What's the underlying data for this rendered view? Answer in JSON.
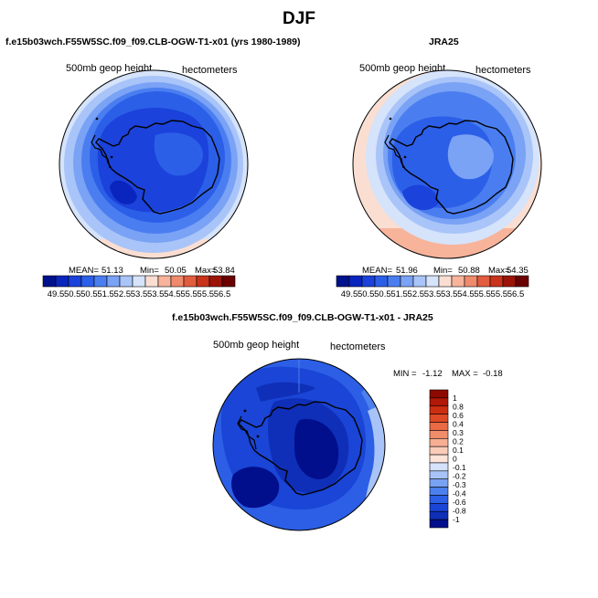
{
  "figure_title": "DJF",
  "colors": {
    "seq": [
      "#00118d",
      "#0a25bd",
      "#1b42da",
      "#2c5fe8",
      "#4a7ef0",
      "#7aa2f5",
      "#a9c4f8",
      "#d5e3fb",
      "#fbded2",
      "#f7b49b",
      "#f08a6c",
      "#e25c3f",
      "#c9321b",
      "#9c1408",
      "#6b0000"
    ],
    "diff_pos": [
      "#fde3d8",
      "#fbcdb9",
      "#f7ae92",
      "#f28d6c",
      "#ea6a45",
      "#df4a26",
      "#cd2e12",
      "#b01808",
      "#8e0a00"
    ],
    "diff_neg": [
      "#d4e2fb",
      "#a8c3f7",
      "#7aa2f2",
      "#4b80ee",
      "#2c5fe6",
      "#1a45d6",
      "#0f2fb8",
      "#010f8c"
    ]
  },
  "chart_data": [
    {
      "type": "polar_contour_map",
      "title": "f.e15b03wch.F55W5SC.f09_f09.CLB-OGW-T1-x01 (yrs 1980-1989)",
      "variable_label": "500mb geop height",
      "units_label": "hectometers",
      "stats": {
        "mean_label": "MEAN=",
        "mean": "51.13",
        "min_label": "Min=",
        "min": "50.05",
        "max_label": "Max=",
        "max": "53.84"
      },
      "colorbar_ticks": [
        "49.5",
        "50.5",
        "50.5",
        "51.5",
        "52.5",
        "53.5",
        "53.5",
        "54.5",
        "55.5",
        "55.5",
        "56.5"
      ],
      "contour_rings": [
        53.5,
        52.5,
        52.0,
        51.5,
        51.0,
        50.5,
        50.1
      ]
    },
    {
      "type": "polar_contour_map",
      "title": "JRA25",
      "variable_label": "500mb geop height",
      "units_label": "hectometers",
      "stats": {
        "mean_label": "MEAN=",
        "mean": "51.96",
        "min_label": "Min=",
        "min": "50.88",
        "max_label": "Max=",
        "max": "54.35"
      },
      "colorbar_ticks": [
        "49.5",
        "50.5",
        "50.5",
        "51.5",
        "52.5",
        "53.5",
        "53.5",
        "54.5",
        "55.5",
        "55.5",
        "56.5"
      ],
      "contour_rings": [
        54.2,
        53.8,
        53.4,
        53.0,
        52.5,
        52.0,
        51.5,
        51.0
      ]
    },
    {
      "type": "polar_contour_map",
      "title": "f.e15b03wch.F55W5SC.f09_f09.CLB-OGW-T1-x01 - JRA25",
      "variable_label": "500mb geop height",
      "units_label": "hectometers",
      "stats": {
        "min_label": "MIN =",
        "min": "-1.12",
        "max_label": "MAX =",
        "max": "-0.18"
      },
      "colorbar_ticks": [
        "1",
        "0.8",
        "0.6",
        "0.4",
        "0.3",
        "0.2",
        "0.1",
        "0",
        "-0.1",
        "-0.2",
        "-0.3",
        "-0.4",
        "-0.6",
        "-0.8",
        "-1"
      ]
    }
  ]
}
